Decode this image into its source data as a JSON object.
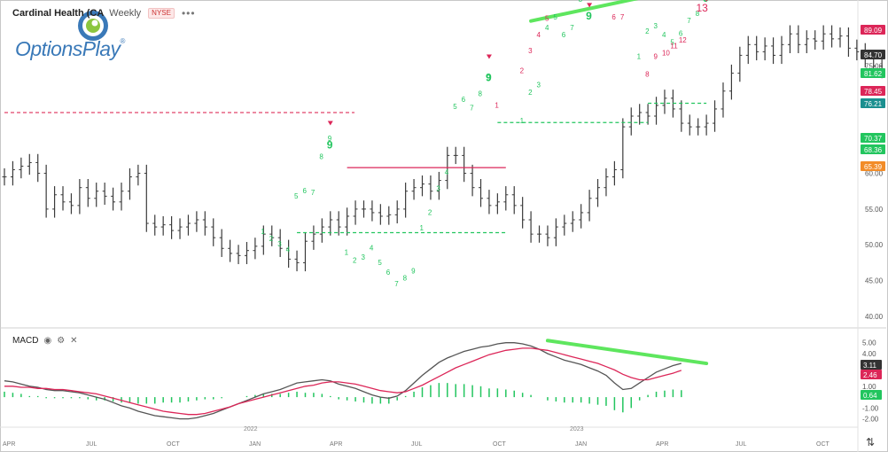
{
  "header": {
    "title": "Cardinal Health (CA",
    "interval": "Weekly",
    "exchange": "NYSE",
    "more_icon": "ellipsis-icon"
  },
  "logo": {
    "brand": "OptionsPlay",
    "reg": "®"
  },
  "macd_panel": {
    "label": "MACD",
    "icons": [
      "eye-icon",
      "gear-icon",
      "close-icon"
    ]
  },
  "colors": {
    "up": "#22c55e",
    "down": "#dc2658",
    "price_bar": "#3a3a3a",
    "macd_line": "#555555",
    "signal_line": "#dc2658",
    "hist": "#22c55e",
    "trendline": "#5ee65e",
    "dashed_ref": "#e0446a"
  },
  "chart_data": [
    {
      "type": "ohlc",
      "x_axis": {
        "ticks": [
          "APR",
          "JUL",
          "OCT",
          "2022",
          "JAN",
          "APR",
          "JUL",
          "OCT",
          "2023",
          "JAN",
          "APR",
          "JUL",
          "OCT"
        ]
      },
      "y_axis": {
        "range": [
          39,
          82.5
        ],
        "ticks": [
          "80.00",
          "75.00",
          "70.00",
          "65.00",
          "60.00",
          "55.00",
          "50.00",
          "45.00",
          "40.00"
        ]
      },
      "closes": [
        59.5,
        60.5,
        61.0,
        61.5,
        60.0,
        55.0,
        57.0,
        56.0,
        55.5,
        58.0,
        56.5,
        57.5,
        56.8,
        56.0,
        57.5,
        59.5,
        60.0,
        53.0,
        52.5,
        52.8,
        52.0,
        52.5,
        53.0,
        53.5,
        52.5,
        51.0,
        49.5,
        48.8,
        48.5,
        49.2,
        49.8,
        51.5,
        51.0,
        49.5,
        48.0,
        47.5,
        50.5,
        51.5,
        52.5,
        53.5,
        52.5,
        54.0,
        55.0,
        55.0,
        54.5,
        54.0,
        54.2,
        55.0,
        57.5,
        58.0,
        58.5,
        57.5,
        59.0,
        62.5,
        62.5,
        60.0,
        58.0,
        56.5,
        55.5,
        56.0,
        57.0,
        55.5,
        53.5,
        51.5,
        51.5,
        51.0,
        52.5,
        53.0,
        53.5,
        54.5,
        56.5,
        58.0,
        59.5,
        60.5,
        66.5,
        68.0,
        68.5,
        68.0,
        69.5,
        70.5,
        69.0,
        67.0,
        66.5,
        66.5,
        67.0,
        69.0,
        71.5,
        74.0,
        76.5,
        78.0,
        77.0,
        77.8,
        76.5,
        78.0,
        79.5,
        78.0,
        78.8,
        78.5,
        79.5,
        78.8,
        79.2,
        77.5,
        77.0,
        76.0,
        75.0,
        74.5,
        76.5,
        78.0,
        79.0,
        78.5,
        76.0,
        72.5,
        70.0,
        69.5,
        71.5,
        76.0,
        79.5,
        80.0,
        80.5,
        81.0,
        80.5,
        81.5,
        82.5,
        84.5,
        84.0,
        84.7
      ],
      "reference_levels": [
        {
          "label": "89.09",
          "color": "#dc2658"
        },
        {
          "label": "84.70",
          "color": "#333333"
        },
        {
          "label": "81.62",
          "color": "#22c55e"
        },
        {
          "label": "78.45",
          "color": "#dc2658"
        },
        {
          "label": "76.21",
          "color": "#1a8f8f"
        },
        {
          "label": "70.37",
          "color": "#22c55e"
        },
        {
          "label": "68.36",
          "color": "#22c55e"
        },
        {
          "label": "65.39",
          "color": "#f28c28"
        }
      ],
      "annotations": {
        "seq_green": [
          [
            "1",
            31,
            51.5
          ],
          [
            "2",
            32,
            50.5
          ],
          [
            "3",
            33,
            49.8
          ],
          [
            "4",
            34,
            49.0
          ],
          [
            "5",
            35,
            56.5
          ],
          [
            "6",
            36,
            57.2
          ],
          [
            "7",
            37,
            57.0
          ],
          [
            "8",
            38,
            62.0
          ],
          [
            "9",
            39,
            64.5
          ],
          [
            "1",
            41,
            48.6
          ],
          [
            "2",
            42,
            47.5
          ],
          [
            "3",
            43,
            47.9
          ],
          [
            "4",
            44,
            49.2
          ],
          [
            "5",
            45,
            47.2
          ],
          [
            "6",
            46,
            45.8
          ],
          [
            "7",
            47,
            44.2
          ],
          [
            "8",
            48,
            45.0
          ],
          [
            "9",
            49,
            46.0
          ],
          [
            "1",
            50,
            52.0
          ],
          [
            "2",
            51,
            54.2
          ],
          [
            "3",
            52,
            57.5
          ],
          [
            "4",
            53,
            59.8
          ],
          [
            "5",
            54,
            69.0
          ],
          [
            "6",
            55,
            70.0
          ],
          [
            "7",
            56,
            68.8
          ],
          [
            "8",
            57,
            70.8
          ],
          [
            "9",
            58,
            73.0
          ],
          [
            "1",
            62,
            67.0
          ],
          [
            "2",
            63,
            71.0
          ],
          [
            "3",
            64,
            72.0
          ],
          [
            "4",
            65,
            80.0
          ],
          [
            "5",
            66,
            81.5
          ],
          [
            "6",
            67,
            79.0
          ],
          [
            "7",
            68,
            80.0
          ],
          [
            "8",
            69,
            84.0
          ],
          [
            "9",
            70,
            84.5
          ],
          [
            "1",
            76,
            76.0
          ],
          [
            "2",
            77,
            79.5
          ],
          [
            "3",
            78,
            80.3
          ],
          [
            "4",
            79,
            79.0
          ],
          [
            "5",
            80,
            78.0
          ],
          [
            "6",
            81,
            79.2
          ],
          [
            "7",
            82,
            81.0
          ],
          [
            "8",
            83,
            82.0
          ]
        ],
        "seq_red": [
          [
            "1",
            59,
            69.2
          ],
          [
            "2",
            62,
            74.0
          ],
          [
            "3",
            63,
            76.8
          ],
          [
            "4",
            64,
            79.0
          ],
          [
            "5",
            65,
            81.3
          ],
          [
            "6",
            73,
            81.5
          ],
          [
            "7",
            74,
            81.5
          ],
          [
            "8",
            77,
            73.5
          ],
          [
            "9",
            78,
            76.0
          ],
          [
            "10",
            79,
            76.5
          ],
          [
            "11",
            80,
            77.5
          ],
          [
            "12",
            81,
            78.3
          ]
        ],
        "sell_arrows": [
          [
            39,
            66.7
          ],
          [
            58,
            76.0
          ],
          [
            70,
            83.2
          ],
          [
            84,
            84.0
          ]
        ],
        "nine_labels": [
          [
            84,
            84.0
          ],
          [
            39,
            63.5
          ],
          [
            58,
            72.9
          ],
          [
            70,
            81.5
          ]
        ],
        "thirteen": [
          "13",
          83.4,
          82.6
        ],
        "resistance_lines": [
          [
            [
              41,
              60.8
            ],
            [
              60,
              60.8
            ]
          ]
        ],
        "support_dashes": [
          [
            [
              35,
              51.7
            ],
            [
              60,
              51.7
            ]
          ],
          [
            [
              59,
              67.1
            ],
            [
              77,
              67.1
            ]
          ],
          [
            [
              77,
              69.8
            ],
            [
              84,
              69.8
            ]
          ]
        ],
        "trendline": [
          [
            63,
            81.3
          ],
          [
            86,
            87.0
          ]
        ],
        "ref_dashed_line": [
          [
            0,
            68.5
          ],
          [
            43,
            68.5
          ]
        ]
      }
    },
    {
      "type": "line",
      "name": "MACD",
      "y_axis": {
        "range": [
          -2.6,
          6.2
        ],
        "ticks": [
          "5.00",
          "4.00",
          "3.00",
          "2.00",
          "1.00",
          "0.00",
          "-1.00",
          "-2.00"
        ]
      },
      "series": [
        {
          "values": [
            1.5,
            1.4,
            1.2,
            1.0,
            0.9,
            0.7,
            0.6,
            0.6,
            0.5,
            0.4,
            0.2,
            0.0,
            -0.2,
            -0.5,
            -0.8,
            -1.0,
            -1.3,
            -1.5,
            -1.7,
            -1.8,
            -1.9,
            -2.0,
            -2.0,
            -1.9,
            -1.7,
            -1.5,
            -1.2,
            -0.9,
            -0.6,
            -0.3,
            0.0,
            0.3,
            0.5,
            0.7,
            1.0,
            1.3,
            1.4,
            1.5,
            1.6,
            1.5,
            1.2,
            1.0,
            0.8,
            0.5,
            0.2,
            0.0,
            -0.1,
            0.1,
            0.6,
            1.3,
            2.0,
            2.6,
            3.2,
            3.6,
            3.9,
            4.2,
            4.4,
            4.6,
            4.7,
            4.9,
            5.0,
            5.0,
            4.9,
            4.7,
            4.4,
            4.0,
            3.7,
            3.4,
            3.2,
            3.0,
            2.7,
            2.4,
            2.0,
            1.3,
            0.7,
            0.8,
            1.3,
            1.8,
            2.3,
            2.6,
            2.9,
            3.1
          ]
        },
        {
          "values": [
            1.0,
            1.0,
            0.9,
            0.9,
            0.8,
            0.8,
            0.7,
            0.7,
            0.6,
            0.5,
            0.4,
            0.3,
            0.1,
            -0.1,
            -0.3,
            -0.5,
            -0.7,
            -0.9,
            -1.1,
            -1.3,
            -1.4,
            -1.5,
            -1.6,
            -1.6,
            -1.5,
            -1.3,
            -1.1,
            -0.9,
            -0.6,
            -0.4,
            -0.2,
            0.0,
            0.2,
            0.4,
            0.6,
            0.8,
            1.0,
            1.1,
            1.3,
            1.4,
            1.4,
            1.3,
            1.2,
            1.0,
            0.8,
            0.6,
            0.5,
            0.4,
            0.5,
            0.8,
            1.1,
            1.5,
            1.9,
            2.3,
            2.7,
            3.0,
            3.3,
            3.6,
            3.9,
            4.1,
            4.3,
            4.4,
            4.5,
            4.5,
            4.4,
            4.3,
            4.1,
            3.9,
            3.7,
            3.5,
            3.3,
            3.1,
            2.8,
            2.5,
            2.1,
            1.8,
            1.6,
            1.6,
            1.8,
            2.0,
            2.2,
            2.46
          ]
        }
      ],
      "histogram": [
        0.5,
        0.4,
        0.3,
        0.1,
        0.1,
        -0.1,
        -0.1,
        -0.1,
        -0.1,
        -0.1,
        -0.2,
        -0.3,
        -0.3,
        -0.4,
        -0.5,
        -0.5,
        -0.6,
        -0.6,
        -0.6,
        -0.5,
        -0.5,
        -0.5,
        -0.4,
        -0.3,
        -0.2,
        -0.2,
        -0.1,
        0.0,
        0.0,
        0.1,
        0.2,
        0.3,
        0.3,
        0.3,
        0.4,
        0.5,
        0.4,
        0.4,
        0.3,
        0.1,
        -0.2,
        -0.3,
        -0.4,
        -0.5,
        -0.6,
        -0.6,
        -0.6,
        -0.3,
        0.1,
        0.5,
        0.9,
        1.1,
        1.3,
        1.3,
        1.2,
        1.2,
        1.1,
        1.0,
        0.8,
        0.8,
        0.7,
        0.6,
        0.4,
        0.2,
        0.0,
        -0.3,
        -0.4,
        -0.5,
        -0.5,
        -0.5,
        -0.6,
        -0.7,
        -0.8,
        -1.2,
        -1.4,
        -1.0,
        -0.3,
        0.2,
        0.5,
        0.6,
        0.7,
        0.64
      ],
      "current_labels": [
        {
          "label": "3.11",
          "color": "#333333"
        },
        {
          "label": "2.46",
          "color": "#dc2658"
        },
        {
          "label": "0.64",
          "color": "#22c55e"
        }
      ]
    }
  ]
}
